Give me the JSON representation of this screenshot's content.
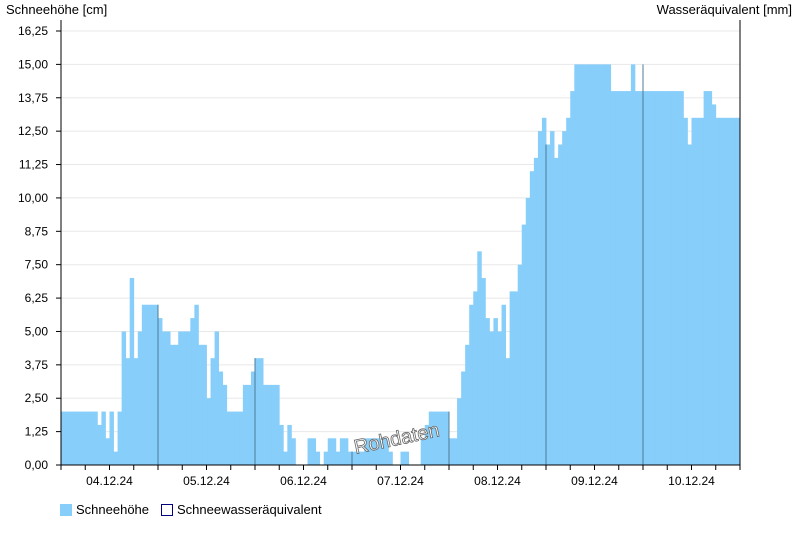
{
  "chart_data": {
    "type": "bar",
    "ylabel": "Schneehöhe [cm]",
    "y2label": "Wasseräquivalent [mm]",
    "ylim": [
      0,
      16.25
    ],
    "yticks": [
      "0,00",
      "1,25",
      "2,50",
      "3,75",
      "5,00",
      "6,25",
      "7,50",
      "8,75",
      "10,00",
      "11,25",
      "12,50",
      "13,75",
      "15,00",
      "16,25"
    ],
    "xticks": [
      "04.12.24",
      "05.12.24",
      "06.12.24",
      "07.12.24",
      "08.12.24",
      "09.12.24",
      "10.12.24"
    ],
    "grid": true,
    "legend_position": "bottom-left",
    "watermark": "Rohdaten",
    "colors": {
      "snow_height": "#87cefa",
      "swe": "#000080",
      "swe_line": "#4f7b98"
    },
    "series": [
      {
        "name": "Schneehöhe",
        "resolution": "hourly",
        "days": [
          {
            "date": "04.12.24",
            "values": [
              2,
              2,
              2,
              2,
              2,
              2,
              2,
              2,
              2,
              1.5,
              2,
              1,
              2,
              0.5,
              2,
              5,
              4,
              7,
              4,
              5,
              6,
              6,
              6,
              6
            ]
          },
          {
            "date": "05.12.24",
            "values": [
              5.5,
              5,
              5,
              4.5,
              4.5,
              5,
              5,
              5,
              5.5,
              6,
              4.5,
              4.5,
              2.5,
              4,
              5,
              3.5,
              3,
              2,
              2,
              2,
              2,
              3,
              3,
              3.5
            ]
          },
          {
            "date": "06.12.24",
            "values": [
              4,
              4,
              3,
              3,
              3,
              3,
              1.5,
              0.5,
              1.5,
              1,
              0,
              0,
              0,
              1,
              1,
              0.5,
              0,
              0.5,
              1,
              1,
              0.5,
              1,
              1,
              0.5
            ]
          },
          {
            "date": "07.12.24",
            "values": [
              0.5,
              0.5,
              0.5,
              1,
              1,
              1,
              1,
              1,
              1,
              0.5,
              0,
              0,
              0.5,
              0.5,
              0,
              0,
              0,
              1,
              1.5,
              2,
              2,
              2,
              2,
              2
            ]
          },
          {
            "date": "08.12.24",
            "values": [
              1,
              1,
              2.5,
              3.5,
              4.5,
              6,
              6.5,
              8,
              7,
              5.5,
              5,
              5.5,
              5,
              6,
              4,
              6.5,
              6.5,
              7.5,
              9,
              10,
              11,
              11.5,
              12.5,
              13
            ]
          },
          {
            "date": "09.12.24",
            "values": [
              12,
              12.5,
              11.5,
              12,
              12.5,
              13,
              14,
              15,
              15,
              15,
              15,
              15,
              15,
              15,
              15,
              15,
              14,
              14,
              14,
              14,
              14,
              15,
              14,
              14
            ]
          },
          {
            "date": "10.12.24",
            "values": [
              14,
              14,
              14,
              14,
              14,
              14,
              14,
              14,
              14,
              14,
              13,
              12,
              13,
              13,
              13,
              14,
              14,
              13.5,
              13,
              13,
              13,
              13,
              13,
              13
            ]
          }
        ]
      },
      {
        "name": "Schneewasseräquivalent",
        "points": [
          {
            "date": "05.12.24",
            "value": 6
          },
          {
            "date": "06.12.24",
            "value": 4
          },
          {
            "date": "07.12.24",
            "value": 0.5
          },
          {
            "date": "08.12.24",
            "value": 2
          },
          {
            "date": "09.12.24",
            "value": 12
          },
          {
            "date": "10.12.24",
            "value": 15
          }
        ]
      }
    ]
  }
}
